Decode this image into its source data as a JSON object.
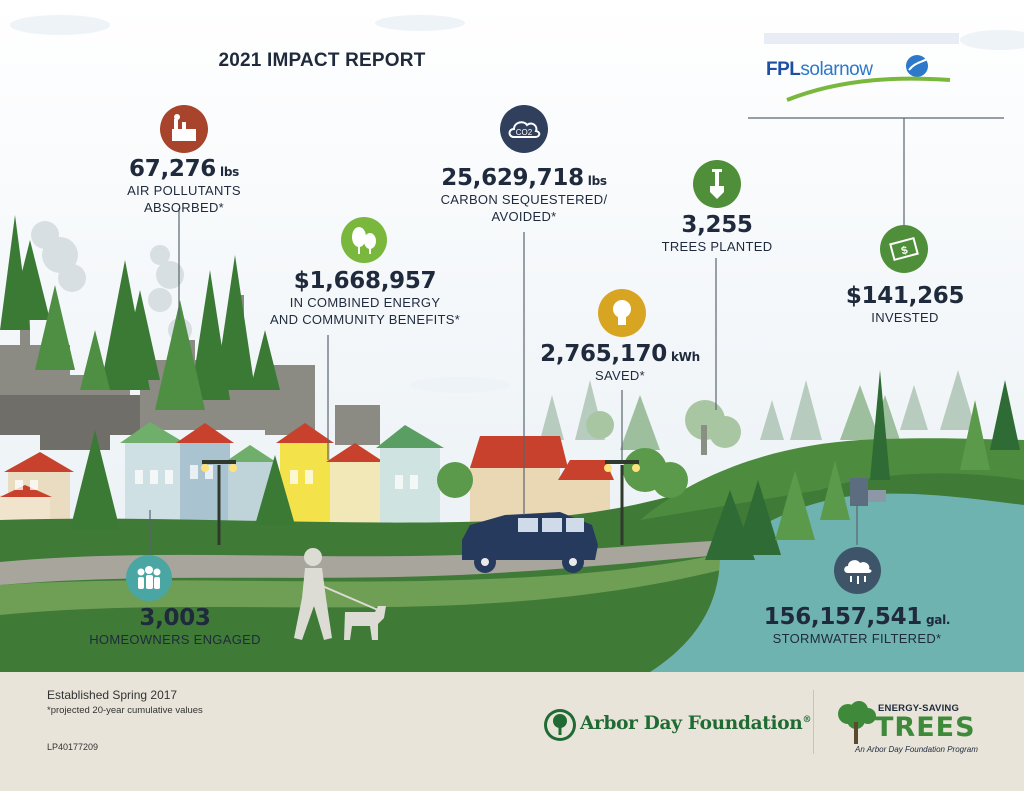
{
  "title": "2021 IMPACT REPORT",
  "sponsor": {
    "prefix": "FPL",
    "brand": "solarnow"
  },
  "stats": {
    "air": {
      "value": "67,276",
      "unit": "lbs",
      "label1": "AIR POLLUTANTS",
      "label2": "ABSORBED*",
      "icon": "factory-icon"
    },
    "benefits": {
      "value": "$1,668,957",
      "label1": "IN COMBINED ENERGY",
      "label2": "AND COMMUNITY BENEFITS*",
      "icon": "trees-icon"
    },
    "carbon": {
      "value": "25,629,718",
      "unit": "lbs",
      "label1": "CARBON SEQUESTERED/",
      "label2": "AVOIDED*",
      "icon": "co2-cloud-icon",
      "icon_text": "CO2"
    },
    "energy": {
      "value": "2,765,170",
      "unit": "kWh",
      "label1": "SAVED*",
      "icon": "lightbulb-icon"
    },
    "trees": {
      "value": "3,255",
      "label1": "TREES PLANTED",
      "icon": "shovel-icon"
    },
    "invested": {
      "value": "$141,265",
      "label1": "INVESTED",
      "icon": "dollar-bill-icon"
    },
    "homeowners": {
      "value": "3,003",
      "label1": "HOMEOWNERS ENGAGED",
      "icon": "people-icon"
    },
    "stormwater": {
      "value": "156,157,541",
      "unit": "gal.",
      "label1": "STORMWATER FILTERED*",
      "icon": "raincloud-icon"
    }
  },
  "colors": {
    "icon_brown": "#a8432c",
    "icon_navy": "#2f3f5c",
    "icon_green": "#4f8f3a",
    "icon_bright_green": "#7ab83d",
    "icon_gold": "#d8a522",
    "icon_teal": "#4aa6a3",
    "icon_slate": "#3e5468",
    "grass": "#3f7a37",
    "water": "#6fb3b1",
    "footer": "#e8e4da"
  },
  "footer": {
    "established": "Established Spring 2017",
    "note": "*projected 20-year cumulative values",
    "code": "LP40177209",
    "arbor_day": "Arbor Day Foundation",
    "registered": "®",
    "est_line1": "ENERGY-SAVING",
    "est_line2": "TREES",
    "est_line3": "An Arbor Day Foundation Program"
  }
}
